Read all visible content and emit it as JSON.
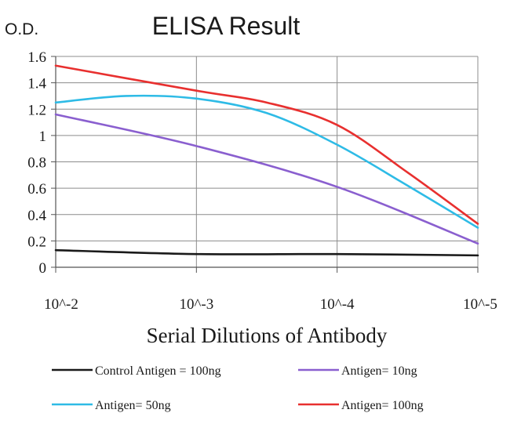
{
  "chart_data": {
    "type": "line",
    "title": "ELISA Result",
    "ylabel": "O.D.",
    "xlabel": "Serial Dilutions of Antibody",
    "categories": [
      "10^-2",
      "10^-3",
      "10^-4",
      "10^-5"
    ],
    "x_log_positions": [
      0,
      1,
      2,
      3
    ],
    "ylim": [
      0,
      1.6
    ],
    "yticks": [
      0,
      0.2,
      0.4,
      0.6,
      0.8,
      1,
      1.2,
      1.4,
      1.6
    ],
    "ytick_labels": [
      "0",
      "0.2",
      "0.4",
      "0.6",
      "0.8",
      "1",
      "1.2",
      "1.4",
      "1.6"
    ],
    "grid": true,
    "legend_position": "bottom",
    "series": [
      {
        "name": "Control Antigen = 100ng",
        "color": "#1a1a1a",
        "points": [
          [
            0,
            0.13
          ],
          [
            1,
            0.1
          ],
          [
            2,
            0.1
          ],
          [
            3,
            0.09
          ]
        ]
      },
      {
        "name": "Antigen= 10ng",
        "color": "#8a5fcf",
        "points": [
          [
            0,
            1.16
          ],
          [
            1,
            0.92
          ],
          [
            2,
            0.61
          ],
          [
            3,
            0.18
          ]
        ]
      },
      {
        "name": "Antigen= 50ng",
        "color": "#2ebbe6",
        "points": [
          [
            0,
            1.25
          ],
          [
            0.5,
            1.3
          ],
          [
            1,
            1.28
          ],
          [
            1.5,
            1.17
          ],
          [
            2,
            0.93
          ],
          [
            2.5,
            0.62
          ],
          [
            3,
            0.3
          ]
        ]
      },
      {
        "name": "Antigen= 100ng",
        "color": "#e8302f",
        "points": [
          [
            0,
            1.53
          ],
          [
            1,
            1.34
          ],
          [
            1.5,
            1.25
          ],
          [
            2,
            1.08
          ],
          [
            2.5,
            0.72
          ],
          [
            3,
            0.33
          ]
        ]
      }
    ]
  }
}
